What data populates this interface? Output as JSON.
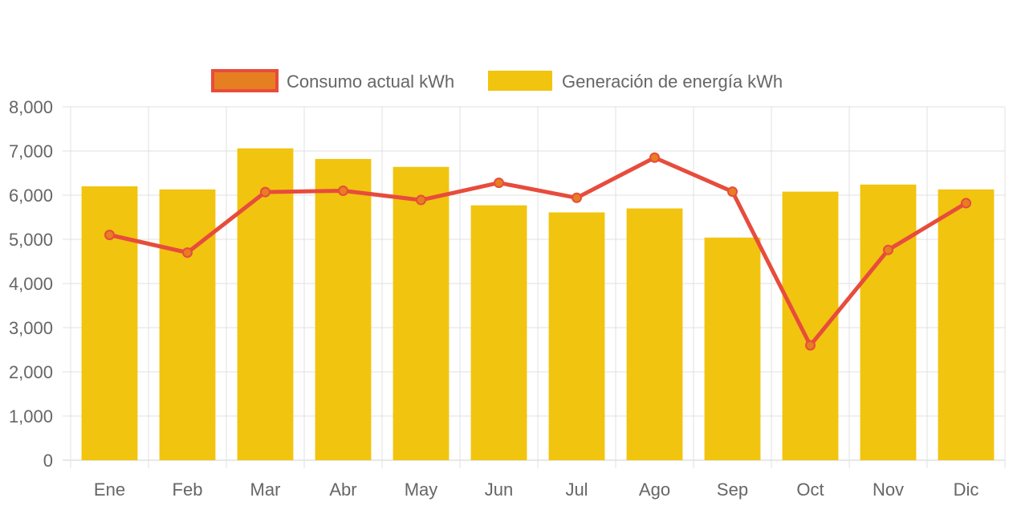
{
  "chart_data": {
    "type": "bar",
    "title": "",
    "xlabel": "",
    "ylabel": "",
    "categories": [
      "Ene",
      "Feb",
      "Mar",
      "Abr",
      "May",
      "Jun",
      "Jul",
      "Ago",
      "Sep",
      "Oct",
      "Nov",
      "Dic"
    ],
    "ylim": [
      0,
      8000
    ],
    "y_ticks": [
      0,
      1000,
      2000,
      3000,
      4000,
      5000,
      6000,
      7000,
      8000
    ],
    "y_tick_labels": [
      "0",
      "1,000",
      "2,000",
      "3,000",
      "4,000",
      "5,000",
      "6,000",
      "7,000",
      "8,000"
    ],
    "grid": true,
    "legend_position": "top-center",
    "series": [
      {
        "name": "Consumo actual kWh",
        "type": "line",
        "color": "#e74c3c",
        "fill_color": "#e67e22",
        "values": [
          5100,
          4700,
          6070,
          6100,
          5890,
          6280,
          5940,
          6850,
          6080,
          2600,
          4760,
          5820
        ]
      },
      {
        "name": "Generación de energía kWh",
        "type": "bar",
        "color": "#f1c40f",
        "values": [
          6200,
          6130,
          7060,
          6820,
          6640,
          5770,
          5610,
          5700,
          5040,
          6080,
          6240,
          6130
        ]
      }
    ]
  }
}
